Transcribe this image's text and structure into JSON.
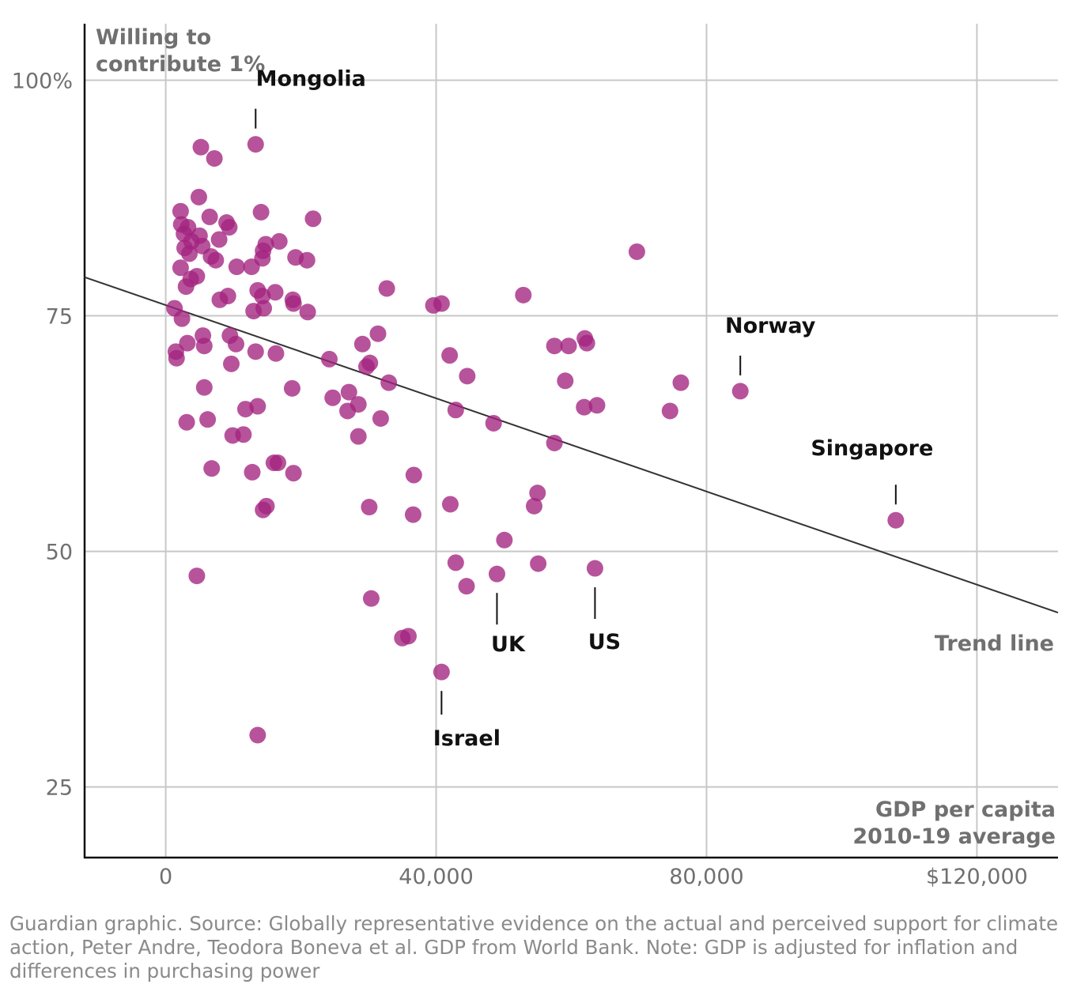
{
  "chart_data": {
    "type": "scatter",
    "title": "",
    "ylabel_lines": [
      "Willing to",
      "contribute 1%"
    ],
    "xlabel_lines": [
      "GDP per capita",
      "2010-19 average"
    ],
    "xlim": [
      -12000,
      132000
    ],
    "ylim": [
      17.5,
      106
    ],
    "x_ticks": [
      {
        "value": 0,
        "label": "0"
      },
      {
        "value": 40000,
        "label": "40,000"
      },
      {
        "value": 80000,
        "label": "80,000"
      },
      {
        "value": 120000,
        "label": "$120,000"
      }
    ],
    "y_ticks": [
      {
        "value": 100,
        "label": "100%"
      },
      {
        "value": 75,
        "label": "75"
      },
      {
        "value": 50,
        "label": "50"
      },
      {
        "value": 25,
        "label": "25"
      }
    ],
    "grid": true,
    "point_color": "#a3237f",
    "trend_line": {
      "label": "Trend line",
      "x": [
        -12000,
        132000
      ],
      "y": [
        79.1,
        43.5
      ]
    },
    "annotations": [
      {
        "label": "Mongolia",
        "x": 13300,
        "y": 93.2
      },
      {
        "label": "Norway",
        "x": 85000,
        "y": 67.0
      },
      {
        "label": "Singapore",
        "x": 108000,
        "y": 53.3
      },
      {
        "label": "UK",
        "x": 49000,
        "y": 47.6
      },
      {
        "label": "US",
        "x": 63500,
        "y": 48.2
      },
      {
        "label": "Israel",
        "x": 40800,
        "y": 37.2
      }
    ],
    "points": [
      [
        13300,
        93.2
      ],
      [
        5200,
        92.9
      ],
      [
        7200,
        91.7
      ],
      [
        4900,
        87.6
      ],
      [
        2200,
        86.1
      ],
      [
        14100,
        86.0
      ],
      [
        6500,
        85.5
      ],
      [
        2300,
        84.7
      ],
      [
        9000,
        84.9
      ],
      [
        9400,
        84.4
      ],
      [
        21800,
        85.3
      ],
      [
        3300,
        84.4
      ],
      [
        2700,
        83.7
      ],
      [
        5000,
        83.5
      ],
      [
        3800,
        82.9
      ],
      [
        7900,
        83.1
      ],
      [
        2800,
        82.2
      ],
      [
        5400,
        82.4
      ],
      [
        16800,
        82.9
      ],
      [
        14800,
        82.6
      ],
      [
        14400,
        81.9
      ],
      [
        3500,
        81.6
      ],
      [
        6700,
        81.3
      ],
      [
        14300,
        81.1
      ],
      [
        19200,
        81.2
      ],
      [
        20900,
        80.9
      ],
      [
        7400,
        80.9
      ],
      [
        2200,
        80.1
      ],
      [
        10500,
        80.2
      ],
      [
        12700,
        80.2
      ],
      [
        4600,
        79.2
      ],
      [
        3700,
        78.9
      ],
      [
        3000,
        78.1
      ],
      [
        32700,
        77.9
      ],
      [
        13600,
        77.7
      ],
      [
        16200,
        77.5
      ],
      [
        52900,
        77.2
      ],
      [
        14300,
        77.1
      ],
      [
        9200,
        77.1
      ],
      [
        8000,
        76.7
      ],
      [
        18800,
        76.7
      ],
      [
        18900,
        76.3
      ],
      [
        39600,
        76.1
      ],
      [
        40800,
        76.3
      ],
      [
        14500,
        75.8
      ],
      [
        1300,
        75.8
      ],
      [
        13000,
        75.5
      ],
      [
        21000,
        75.4
      ],
      [
        2400,
        74.7
      ],
      [
        31400,
        73.1
      ],
      [
        5500,
        72.9
      ],
      [
        9500,
        72.9
      ],
      [
        62000,
        72.6
      ],
      [
        3200,
        72.1
      ],
      [
        10400,
        72.0
      ],
      [
        29100,
        72.0
      ],
      [
        57500,
        71.8
      ],
      [
        59600,
        71.8
      ],
      [
        62300,
        72.1
      ],
      [
        5700,
        71.8
      ],
      [
        1500,
        71.2
      ],
      [
        13300,
        71.2
      ],
      [
        16300,
        71.0
      ],
      [
        42000,
        70.8
      ],
      [
        1600,
        70.5
      ],
      [
        24200,
        70.4
      ],
      [
        30200,
        70.0
      ],
      [
        9700,
        69.9
      ],
      [
        29700,
        69.6
      ],
      [
        44600,
        68.6
      ],
      [
        59100,
        68.1
      ],
      [
        33000,
        67.9
      ],
      [
        76200,
        67.9
      ],
      [
        5700,
        67.4
      ],
      [
        18700,
        67.3
      ],
      [
        85000,
        67.0
      ],
      [
        27100,
        66.9
      ],
      [
        24700,
        66.3
      ],
      [
        28500,
        65.6
      ],
      [
        13600,
        65.4
      ],
      [
        61900,
        65.3
      ],
      [
        63800,
        65.5
      ],
      [
        11800,
        65.1
      ],
      [
        42900,
        65.0
      ],
      [
        26900,
        64.9
      ],
      [
        74600,
        64.9
      ],
      [
        31800,
        64.1
      ],
      [
        6200,
        64.0
      ],
      [
        3100,
        63.7
      ],
      [
        48500,
        63.6
      ],
      [
        11500,
        62.4
      ],
      [
        9900,
        62.3
      ],
      [
        28500,
        62.2
      ],
      [
        57500,
        61.5
      ],
      [
        6800,
        58.8
      ],
      [
        16000,
        59.4
      ],
      [
        16600,
        59.4
      ],
      [
        12800,
        58.4
      ],
      [
        18900,
        58.3
      ],
      [
        36700,
        58.1
      ],
      [
        108000,
        53.3
      ],
      [
        55000,
        56.2
      ],
      [
        42100,
        55.0
      ],
      [
        54500,
        54.8
      ],
      [
        30100,
        54.7
      ],
      [
        14900,
        54.8
      ],
      [
        14400,
        54.4
      ],
      [
        36600,
        53.9
      ],
      [
        50100,
        51.2
      ],
      [
        4600,
        47.4
      ],
      [
        42900,
        48.8
      ],
      [
        55100,
        48.7
      ],
      [
        63500,
        48.2
      ],
      [
        49000,
        47.6
      ],
      [
        44500,
        46.3
      ],
      [
        30400,
        45.0
      ],
      [
        35000,
        40.8
      ],
      [
        35900,
        41.0
      ],
      [
        40800,
        37.2
      ],
      [
        13600,
        30.5
      ],
      [
        69700,
        81.8
      ]
    ]
  },
  "source_note": "Guardian graphic. Source: Globally representative evidence on the actual and perceived support for climate action, Peter Andre, Teodora Boneva et al. GDP from World Bank. Note: GDP is adjusted for inflation and differences in purchasing power"
}
